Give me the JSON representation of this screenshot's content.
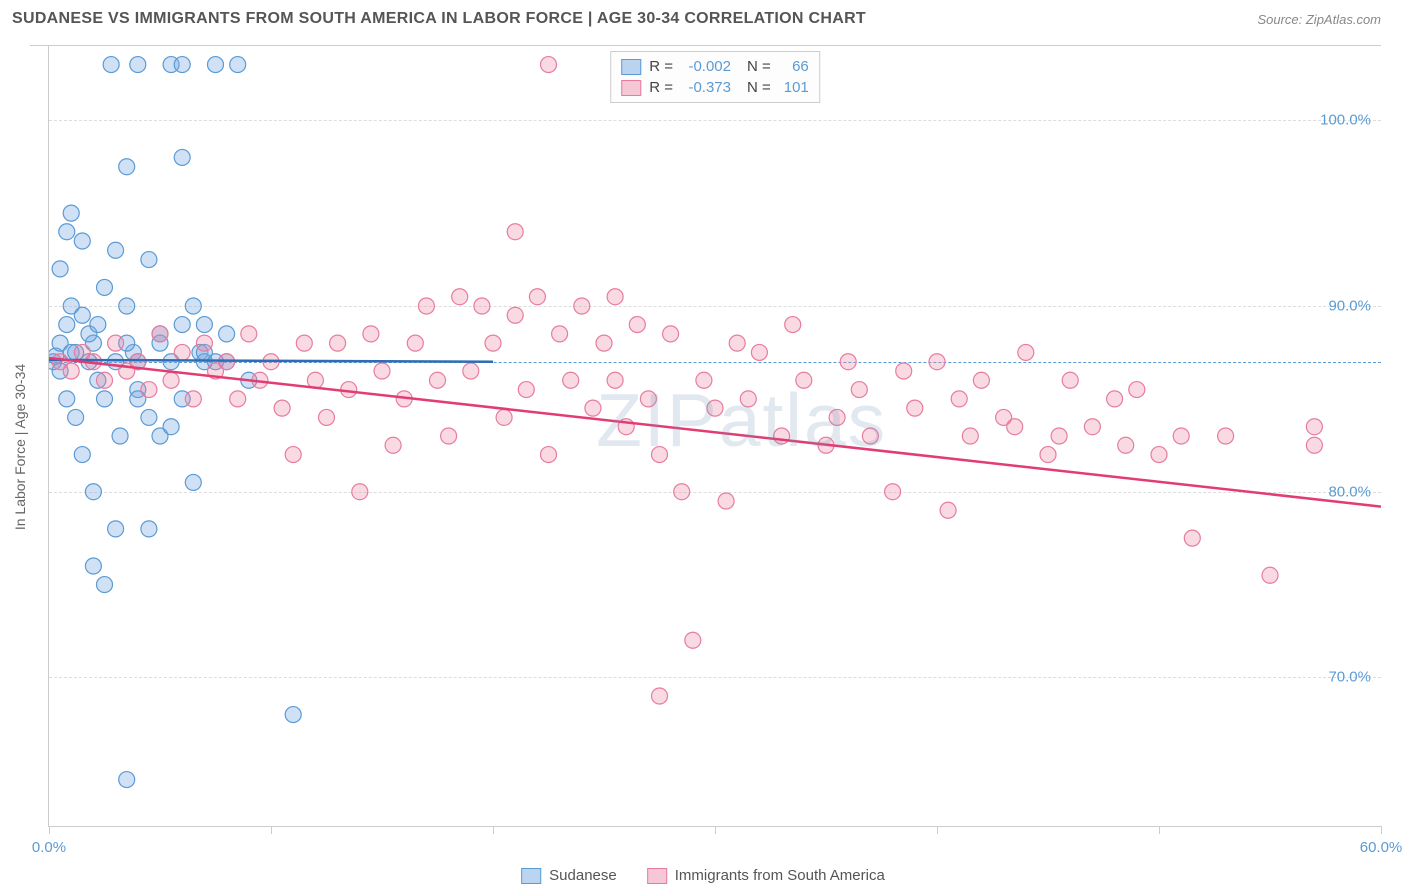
{
  "header": {
    "title": "SUDANESE VS IMMIGRANTS FROM SOUTH AMERICA IN LABOR FORCE | AGE 30-34 CORRELATION CHART",
    "source": "Source: ZipAtlas.com"
  },
  "watermark": "ZIPatlas",
  "chart": {
    "type": "scatter",
    "y_axis_label": "In Labor Force | Age 30-34",
    "xlim": [
      0,
      60
    ],
    "ylim": [
      62,
      104
    ],
    "x_ticks": [
      0,
      10,
      20,
      30,
      40,
      50,
      60
    ],
    "x_tick_labels": {
      "0": "0.0%",
      "60": "60.0%"
    },
    "y_ticks": [
      70,
      80,
      90,
      100
    ],
    "y_tick_labels": {
      "70": "70.0%",
      "80": "80.0%",
      "90": "90.0%",
      "100": "100.0%"
    },
    "gridline_color": "#dddddd",
    "axis_color": "#cccccc",
    "background_color": "#ffffff",
    "tick_label_color": "#5b9bd5",
    "blue_dashed_y": 87,
    "series": [
      {
        "name": "Sudanese",
        "color_fill": "rgba(120,170,225,0.35)",
        "color_stroke": "#5b9bd5",
        "r_value": "-0.002",
        "n_value": "66",
        "trend_line": {
          "x1": 0,
          "y1": 87.1,
          "x2": 20,
          "y2": 87.0,
          "color": "#2e6db5",
          "width": 2.5
        },
        "marker_radius": 8,
        "points": [
          [
            0.2,
            87
          ],
          [
            0.3,
            87.3
          ],
          [
            0.5,
            88
          ],
          [
            0.5,
            86.5
          ],
          [
            0.8,
            89
          ],
          [
            0.8,
            85
          ],
          [
            1,
            87.5
          ],
          [
            1,
            90
          ],
          [
            1.2,
            84
          ],
          [
            1.5,
            89.5
          ],
          [
            1.5,
            82
          ],
          [
            1.8,
            87
          ],
          [
            2,
            88
          ],
          [
            2,
            80
          ],
          [
            2.2,
            86
          ],
          [
            2.5,
            91
          ],
          [
            2.5,
            85
          ],
          [
            2.8,
            103
          ],
          [
            3,
            87
          ],
          [
            3,
            78
          ],
          [
            3.2,
            83
          ],
          [
            3.5,
            90
          ],
          [
            3.5,
            97.5
          ],
          [
            3.8,
            87.5
          ],
          [
            4,
            85.5
          ],
          [
            4,
            103
          ],
          [
            4.5,
            92.5
          ],
          [
            4.5,
            78
          ],
          [
            5,
            88
          ],
          [
            5,
            83
          ],
          [
            5.5,
            87
          ],
          [
            5.5,
            103
          ],
          [
            6,
            85
          ],
          [
            6,
            103
          ],
          [
            6.5,
            90
          ],
          [
            6.8,
            87.5
          ],
          [
            7,
            89
          ],
          [
            7.5,
            103
          ],
          [
            8,
            87
          ],
          [
            8.5,
            103
          ],
          [
            9,
            86
          ],
          [
            2,
            76
          ],
          [
            1,
            95
          ],
          [
            1.5,
            93.5
          ],
          [
            0.5,
            92
          ],
          [
            0.8,
            94
          ],
          [
            3,
            93
          ],
          [
            4,
            85
          ],
          [
            4.5,
            84
          ],
          [
            5.5,
            83.5
          ],
          [
            6,
            98
          ],
          [
            6.5,
            80.5
          ],
          [
            7,
            87
          ],
          [
            1.2,
            87.5
          ],
          [
            1.8,
            88.5
          ],
          [
            2.2,
            89
          ],
          [
            2.5,
            75
          ],
          [
            3.5,
            88
          ],
          [
            3.5,
            64.5
          ],
          [
            5,
            88.5
          ],
          [
            6,
            89
          ],
          [
            7.5,
            87
          ],
          [
            8,
            88.5
          ],
          [
            11,
            68
          ],
          [
            4,
            87
          ],
          [
            7,
            87.5
          ]
        ]
      },
      {
        "name": "Immigrants from South America",
        "color_fill": "rgba(235,130,160,0.3)",
        "color_stroke": "#e87ca0",
        "r_value": "-0.373",
        "n_value": "101",
        "trend_line": {
          "x1": 0,
          "y1": 87.2,
          "x2": 60,
          "y2": 79.2,
          "color": "#e13d73",
          "width": 2.5
        },
        "marker_radius": 8,
        "points": [
          [
            0.5,
            87
          ],
          [
            1,
            86.5
          ],
          [
            1.5,
            87.5
          ],
          [
            2,
            87
          ],
          [
            2.5,
            86
          ],
          [
            3,
            88
          ],
          [
            3.5,
            86.5
          ],
          [
            4,
            87
          ],
          [
            4.5,
            85.5
          ],
          [
            5,
            88.5
          ],
          [
            5.5,
            86
          ],
          [
            6,
            87.5
          ],
          [
            6.5,
            85
          ],
          [
            7,
            88
          ],
          [
            7.5,
            86.5
          ],
          [
            8,
            87
          ],
          [
            8.5,
            85
          ],
          [
            9,
            88.5
          ],
          [
            9.5,
            86
          ],
          [
            10,
            87
          ],
          [
            10.5,
            84.5
          ],
          [
            11,
            82
          ],
          [
            11.5,
            88
          ],
          [
            12,
            86
          ],
          [
            12.5,
            84
          ],
          [
            13,
            88
          ],
          [
            13.5,
            85.5
          ],
          [
            14,
            80
          ],
          [
            14.5,
            88.5
          ],
          [
            15,
            86.5
          ],
          [
            15.5,
            82.5
          ],
          [
            16,
            85
          ],
          [
            16.5,
            88
          ],
          [
            17,
            90
          ],
          [
            17.5,
            86
          ],
          [
            18,
            83
          ],
          [
            18.5,
            90.5
          ],
          [
            19,
            86.5
          ],
          [
            19.5,
            90
          ],
          [
            20,
            88
          ],
          [
            20.5,
            84
          ],
          [
            21,
            89.5
          ],
          [
            21,
            94
          ],
          [
            21.5,
            85.5
          ],
          [
            22,
            90.5
          ],
          [
            22.5,
            82
          ],
          [
            22.5,
            103
          ],
          [
            23,
            88.5
          ],
          [
            23.5,
            86
          ],
          [
            24,
            90
          ],
          [
            24.5,
            84.5
          ],
          [
            25,
            88
          ],
          [
            25.5,
            86
          ],
          [
            25.5,
            90.5
          ],
          [
            26,
            83.5
          ],
          [
            26.5,
            89
          ],
          [
            27,
            85
          ],
          [
            27.5,
            82
          ],
          [
            27.5,
            69
          ],
          [
            28,
            88.5
          ],
          [
            28.5,
            80
          ],
          [
            29,
            72
          ],
          [
            29.5,
            86
          ],
          [
            30,
            84.5
          ],
          [
            30.5,
            79.5
          ],
          [
            31,
            88
          ],
          [
            31.5,
            85
          ],
          [
            32,
            87.5
          ],
          [
            33,
            83
          ],
          [
            33.5,
            89
          ],
          [
            34,
            86
          ],
          [
            35,
            82.5
          ],
          [
            35.5,
            84
          ],
          [
            36,
            87
          ],
          [
            36.5,
            85.5
          ],
          [
            37,
            83
          ],
          [
            38,
            80
          ],
          [
            38.5,
            86.5
          ],
          [
            39,
            84.5
          ],
          [
            40,
            87
          ],
          [
            40.5,
            79
          ],
          [
            41,
            85
          ],
          [
            41.5,
            83
          ],
          [
            42,
            86
          ],
          [
            43,
            84
          ],
          [
            43.5,
            83.5
          ],
          [
            44,
            87.5
          ],
          [
            45,
            82
          ],
          [
            45.5,
            83
          ],
          [
            46,
            86
          ],
          [
            47,
            83.5
          ],
          [
            48,
            85
          ],
          [
            48.5,
            82.5
          ],
          [
            49,
            85.5
          ],
          [
            50,
            82
          ],
          [
            51,
            83
          ],
          [
            51.5,
            77.5
          ],
          [
            53,
            83
          ],
          [
            55,
            75.5
          ],
          [
            57,
            82.5
          ],
          [
            57,
            83.5
          ]
        ]
      }
    ]
  },
  "bottom_legend": {
    "items": [
      {
        "label": "Sudanese",
        "fill": "rgba(120,170,225,0.5)",
        "stroke": "#5b9bd5"
      },
      {
        "label": "Immigrants from South America",
        "fill": "rgba(235,130,160,0.45)",
        "stroke": "#e87ca0"
      }
    ]
  }
}
